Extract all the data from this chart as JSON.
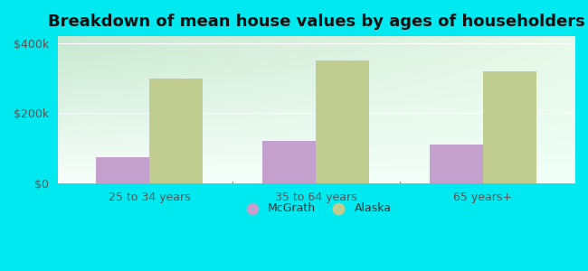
{
  "title": "Breakdown of mean house values by ages of householders",
  "categories": [
    "25 to 34 years",
    "35 to 64 years",
    "65 years+"
  ],
  "mcgrath_values": [
    75000,
    120000,
    110000
  ],
  "alaska_values": [
    300000,
    350000,
    320000
  ],
  "mcgrath_color": "#c4a0cc",
  "alaska_color": "#c0cc90",
  "background_color": "#00e8f0",
  "ylim": [
    0,
    420000
  ],
  "yticks": [
    0,
    200000,
    400000
  ],
  "ytick_labels": [
    "$0",
    "$200k",
    "$400k"
  ],
  "legend_labels": [
    "McGrath",
    "Alaska"
  ],
  "bar_width": 0.32,
  "title_fontsize": 13,
  "tick_fontsize": 9,
  "legend_fontsize": 9,
  "gradient_top_left": "#c8e8d0",
  "gradient_bottom_right": "#f0fff8"
}
